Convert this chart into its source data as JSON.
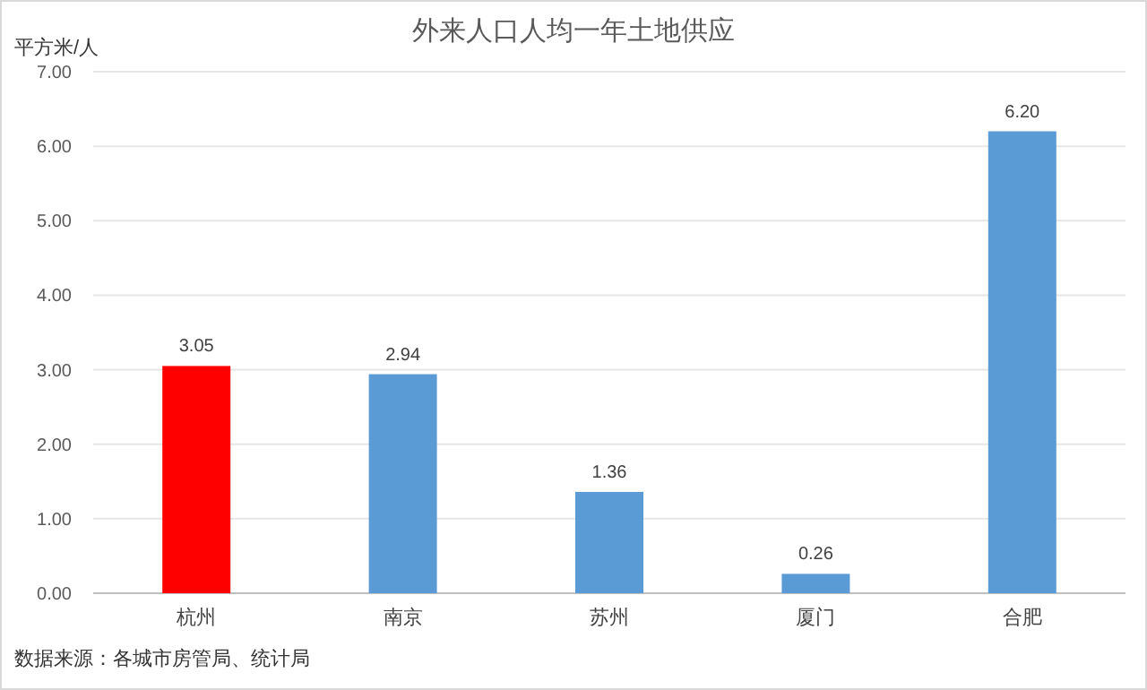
{
  "chart_data": {
    "type": "bar",
    "title": "外来人口人均一年土地供应",
    "ylabel": "平方米/人",
    "categories": [
      "杭州",
      "南京",
      "苏州",
      "厦门",
      "合肥"
    ],
    "values": [
      3.05,
      2.94,
      1.36,
      0.26,
      6.2
    ],
    "colors": [
      "#ff0000",
      "#5b9bd5",
      "#5b9bd5",
      "#5b9bd5",
      "#5b9bd5"
    ],
    "value_labels": [
      "3.05",
      "2.94",
      "1.36",
      "0.26",
      "6.20"
    ],
    "ylim": [
      0,
      7
    ],
    "yticks": [
      {
        "value": 0,
        "label": "0.00"
      },
      {
        "value": 1,
        "label": "1.00"
      },
      {
        "value": 2,
        "label": "2.00"
      },
      {
        "value": 3,
        "label": "3.00"
      },
      {
        "value": 4,
        "label": "4.00"
      },
      {
        "value": 5,
        "label": "5.00"
      },
      {
        "value": 6,
        "label": "6.00"
      },
      {
        "value": 7,
        "label": "7.00"
      }
    ],
    "grid": "y",
    "annotations": [
      "数据来源：各城市房管局、统计局"
    ]
  }
}
